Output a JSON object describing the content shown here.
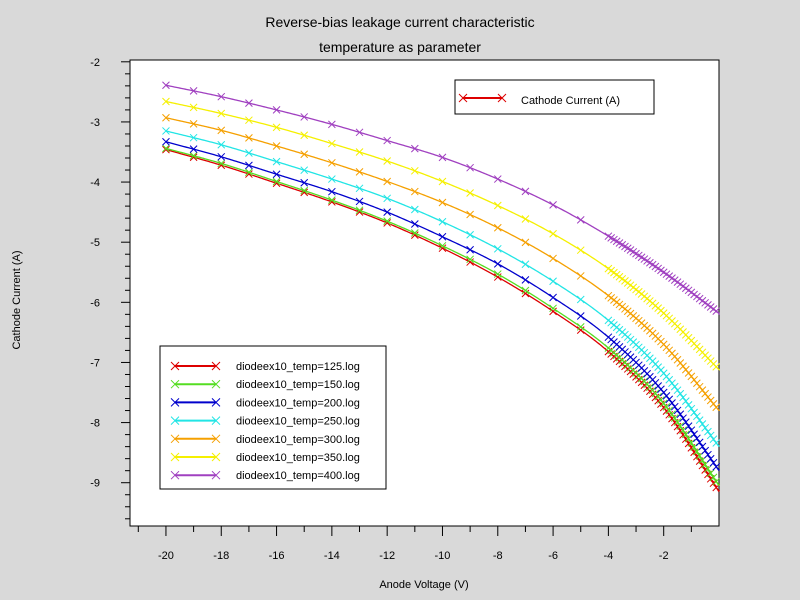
{
  "chart_data": {
    "type": "line",
    "title": "Reverse-bias leakage current characteristic",
    "subtitle": "temperature as parameter",
    "xlabel": "Anode Voltage (V)",
    "ylabel": "Cathode Current (A)",
    "xlim": [
      -21.3,
      0
    ],
    "ylim": [
      -9.72,
      -1.97
    ],
    "x_ticks": [
      -20,
      -18,
      -16,
      -14,
      -12,
      -10,
      -8,
      -6,
      -4,
      -2
    ],
    "y_ticks": [
      -2,
      -3,
      -4,
      -5,
      -6,
      -7,
      -8,
      -9
    ],
    "legend_top": {
      "label": "Cathode Current (A)",
      "color": "#dd0000",
      "position": "top-right"
    },
    "legend_position": "bottom-left",
    "x": [
      -20,
      -18,
      -16,
      -14,
      -12,
      -10,
      -8,
      -6,
      -4,
      -2,
      0
    ],
    "series": [
      {
        "name": "diodeex10_temp=125.log",
        "color": "#dd0000",
        "values": [
          -3.46,
          -3.72,
          -4.02,
          -4.33,
          -4.68,
          -5.1,
          -5.58,
          -6.15,
          -6.82,
          -7.75,
          -9.15
        ]
      },
      {
        "name": "diodeex10_temp=150.log",
        "color": "#55dd22",
        "values": [
          -3.44,
          -3.69,
          -3.99,
          -4.3,
          -4.65,
          -5.06,
          -5.53,
          -6.1,
          -6.76,
          -7.68,
          -9.05
        ]
      },
      {
        "name": "diodeex10_temp=200.log",
        "color": "#0000cc",
        "values": [
          -3.33,
          -3.58,
          -3.87,
          -4.16,
          -4.5,
          -4.91,
          -5.36,
          -5.92,
          -6.58,
          -7.5,
          -8.8
        ]
      },
      {
        "name": "diodeex10_temp=250.log",
        "color": "#22e5e5",
        "values": [
          -3.15,
          -3.38,
          -3.66,
          -3.95,
          -4.27,
          -4.66,
          -5.11,
          -5.65,
          -6.3,
          -7.18,
          -8.4
        ]
      },
      {
        "name": "diodeex10_temp=300.log",
        "color": "#f5a000",
        "values": [
          -2.93,
          -3.14,
          -3.4,
          -3.68,
          -3.99,
          -4.34,
          -4.76,
          -5.27,
          -5.89,
          -6.7,
          -7.8
        ]
      },
      {
        "name": "diodeex10_temp=350.log",
        "color": "#f5f000",
        "values": [
          -2.66,
          -2.86,
          -3.09,
          -3.36,
          -3.65,
          -3.99,
          -4.39,
          -4.86,
          -5.44,
          -6.18,
          -7.12
        ]
      },
      {
        "name": "diodeex10_temp=400.log",
        "color": "#a040c0",
        "values": [
          -2.39,
          -2.58,
          -2.8,
          -3.04,
          -3.31,
          -3.59,
          -3.95,
          -4.38,
          -4.9,
          -5.5,
          -6.18
        ]
      }
    ]
  }
}
